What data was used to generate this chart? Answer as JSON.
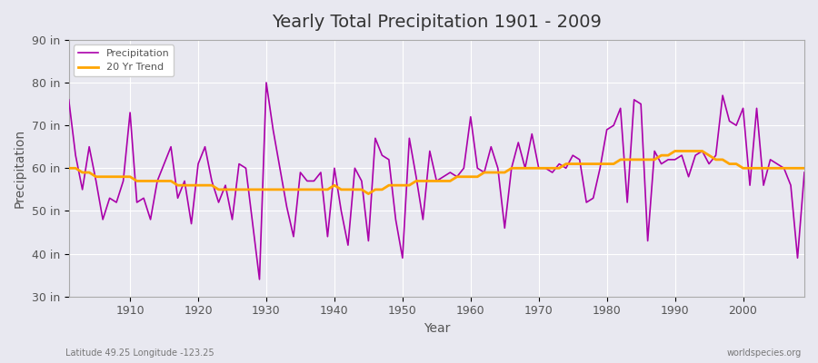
{
  "title": "Yearly Total Precipitation 1901 - 2009",
  "xlabel": "Year",
  "ylabel": "Precipitation",
  "lat_lon_label": "Latitude 49.25 Longitude -123.25",
  "watermark": "worldspecies.org",
  "ylim": [
    30,
    90
  ],
  "ytick_values": [
    30,
    40,
    50,
    60,
    70,
    80,
    90
  ],
  "ytick_labels": [
    "30 in",
    "40 in",
    "50 in",
    "60 in",
    "70 in",
    "80 in",
    "90 in"
  ],
  "xlim": [
    1901,
    2009
  ],
  "precip_color": "#AA00AA",
  "trend_color": "#FFA500",
  "bg_color": "#E8E8F0",
  "grid_color": "#FFFFFF",
  "years": [
    1901,
    1902,
    1903,
    1904,
    1905,
    1906,
    1907,
    1908,
    1909,
    1910,
    1911,
    1912,
    1913,
    1914,
    1915,
    1916,
    1917,
    1918,
    1919,
    1920,
    1921,
    1922,
    1923,
    1924,
    1925,
    1926,
    1927,
    1928,
    1929,
    1930,
    1931,
    1932,
    1933,
    1934,
    1935,
    1936,
    1937,
    1938,
    1939,
    1940,
    1941,
    1942,
    1943,
    1944,
    1945,
    1946,
    1947,
    1948,
    1949,
    1950,
    1951,
    1952,
    1953,
    1954,
    1955,
    1956,
    1957,
    1958,
    1959,
    1960,
    1961,
    1962,
    1963,
    1964,
    1965,
    1966,
    1967,
    1968,
    1969,
    1970,
    1971,
    1972,
    1973,
    1974,
    1975,
    1976,
    1977,
    1978,
    1979,
    1980,
    1981,
    1982,
    1983,
    1984,
    1985,
    1986,
    1987,
    1988,
    1989,
    1990,
    1991,
    1992,
    1993,
    1994,
    1995,
    1996,
    1997,
    1998,
    1999,
    2000,
    2001,
    2002,
    2003,
    2004,
    2005,
    2006,
    2007,
    2008,
    2009
  ],
  "precipitation": [
    76,
    63,
    55,
    65,
    57,
    48,
    53,
    52,
    57,
    73,
    52,
    53,
    48,
    57,
    61,
    65,
    53,
    57,
    47,
    61,
    65,
    57,
    52,
    56,
    48,
    61,
    60,
    47,
    34,
    80,
    69,
    60,
    51,
    44,
    59,
    57,
    57,
    59,
    44,
    60,
    50,
    42,
    60,
    57,
    43,
    67,
    63,
    62,
    48,
    39,
    67,
    58,
    48,
    64,
    57,
    58,
    59,
    58,
    60,
    72,
    60,
    59,
    65,
    60,
    46,
    60,
    66,
    60,
    68,
    60,
    60,
    59,
    61,
    60,
    63,
    62,
    52,
    53,
    60,
    69,
    70,
    74,
    52,
    76,
    75,
    43,
    64,
    61,
    62,
    62,
    63,
    58,
    63,
    64,
    61,
    63,
    77,
    71,
    70,
    74,
    56,
    74,
    56,
    62,
    61,
    60,
    56,
    39,
    59
  ],
  "trend": [
    60,
    60,
    59,
    59,
    58,
    58,
    58,
    58,
    58,
    58,
    57,
    57,
    57,
    57,
    57,
    57,
    56,
    56,
    56,
    56,
    56,
    56,
    55,
    55,
    55,
    55,
    55,
    55,
    55,
    55,
    55,
    55,
    55,
    55,
    55,
    55,
    55,
    55,
    55,
    56,
    55,
    55,
    55,
    55,
    54,
    55,
    55,
    56,
    56,
    56,
    56,
    57,
    57,
    57,
    57,
    57,
    57,
    58,
    58,
    58,
    58,
    59,
    59,
    59,
    59,
    60,
    60,
    60,
    60,
    60,
    60,
    60,
    60,
    61,
    61,
    61,
    61,
    61,
    61,
    61,
    61,
    62,
    62,
    62,
    62,
    62,
    62,
    63,
    63,
    64,
    64,
    64,
    64,
    64,
    63,
    62,
    62,
    61,
    61,
    60,
    60,
    60,
    60,
    60,
    60,
    60,
    60,
    60,
    60
  ]
}
